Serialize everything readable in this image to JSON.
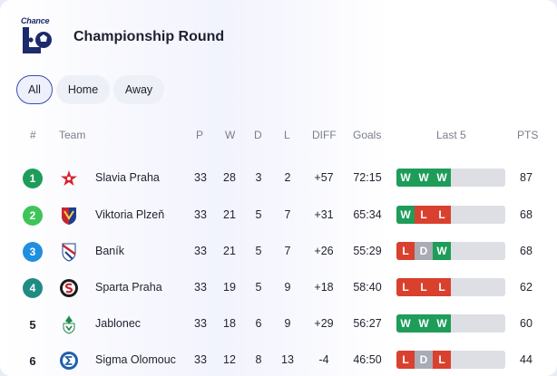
{
  "header": {
    "logo_text": "Chance",
    "title": "Championship Round"
  },
  "filters": [
    {
      "label": "All",
      "active": true
    },
    {
      "label": "Home",
      "active": false
    },
    {
      "label": "Away",
      "active": false
    }
  ],
  "columns": {
    "rank": "#",
    "team": "Team",
    "p": "P",
    "w": "W",
    "d": "D",
    "l": "L",
    "diff": "DIFF",
    "goals": "Goals",
    "last5": "Last 5",
    "pts": "PTS"
  },
  "rows": [
    {
      "rank": "1",
      "rank_color": "#1e9c5a",
      "team": "Slavia Praha",
      "crest": "slavia-crest-icon",
      "p": "33",
      "w": "28",
      "d": "3",
      "l": "2",
      "diff": "+57",
      "goals": "72:15",
      "form": [
        "W",
        "W",
        "W"
      ],
      "pts": "87"
    },
    {
      "rank": "2",
      "rank_color": "#3fc45a",
      "team": "Viktoria Plzeň",
      "crest": "plzen-crest-icon",
      "p": "33",
      "w": "21",
      "d": "5",
      "l": "7",
      "diff": "+31",
      "goals": "65:34",
      "form": [
        "W",
        "L",
        "L"
      ],
      "pts": "68"
    },
    {
      "rank": "3",
      "rank_color": "#1f8fe0",
      "team": "Baník",
      "crest": "banik-crest-icon",
      "p": "33",
      "w": "21",
      "d": "5",
      "l": "7",
      "diff": "+26",
      "goals": "55:29",
      "form": [
        "L",
        "D",
        "W"
      ],
      "pts": "68"
    },
    {
      "rank": "4",
      "rank_color": "#1f8b86",
      "team": "Sparta Praha",
      "crest": "sparta-crest-icon",
      "p": "33",
      "w": "19",
      "d": "5",
      "l": "9",
      "diff": "+18",
      "goals": "58:40",
      "form": [
        "L",
        "L",
        "L"
      ],
      "pts": "62"
    },
    {
      "rank": "5",
      "rank_color": "",
      "team": "Jablonec",
      "crest": "jablonec-crest-icon",
      "p": "33",
      "w": "18",
      "d": "6",
      "l": "9",
      "diff": "+29",
      "goals": "56:27",
      "form": [
        "W",
        "W",
        "W"
      ],
      "pts": "60"
    },
    {
      "rank": "6",
      "rank_color": "",
      "team": "Sigma Olomouc",
      "crest": "sigma-crest-icon",
      "p": "33",
      "w": "12",
      "d": "8",
      "l": "13",
      "diff": "-4",
      "goals": "46:50",
      "form": [
        "L",
        "D",
        "L"
      ],
      "pts": "44"
    }
  ]
}
